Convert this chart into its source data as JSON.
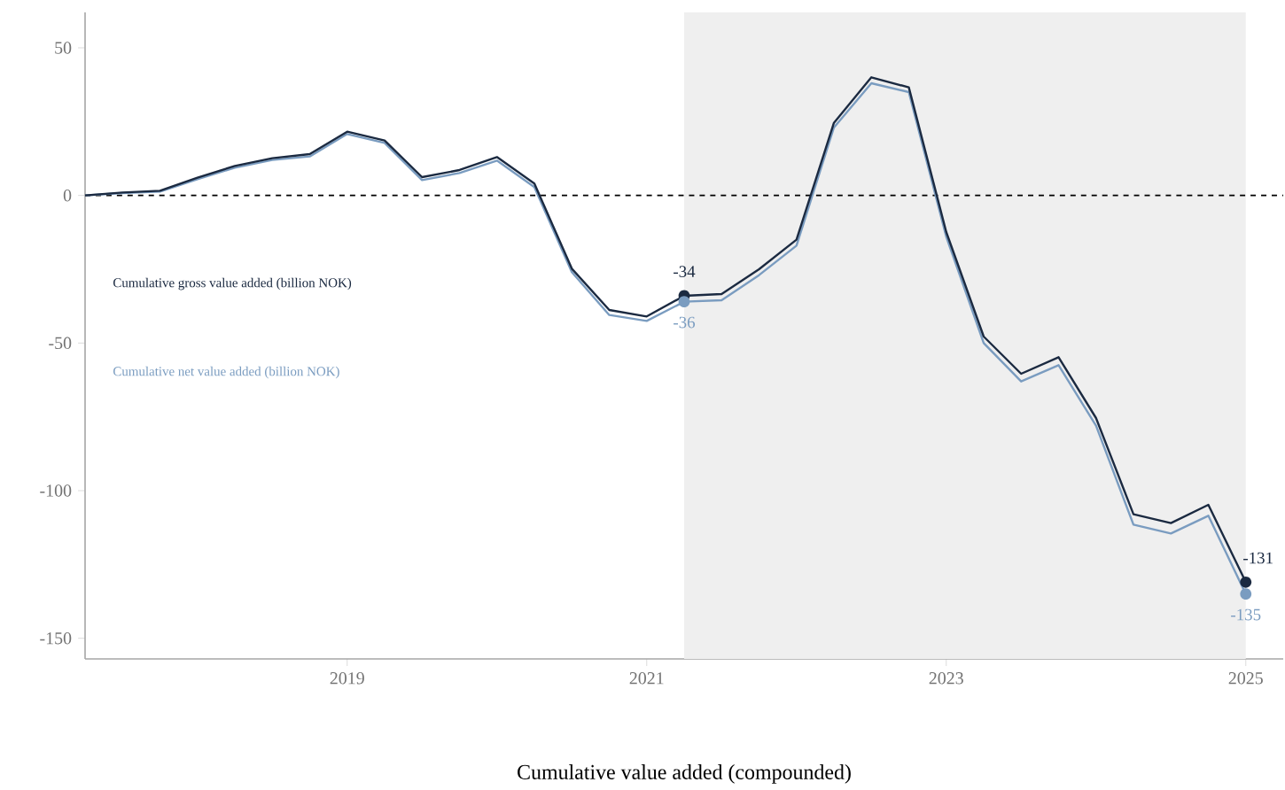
{
  "chart_data": {
    "type": "line",
    "xlabel": "Cumulative value added (compounded)",
    "x": [
      "2017-04",
      "2017-07",
      "2017-10",
      "2018-01",
      "2018-04",
      "2018-07",
      "2018-10",
      "2019-01",
      "2019-04",
      "2019-07",
      "2019-10",
      "2020-01",
      "2020-04",
      "2020-07",
      "2020-10",
      "2021-01",
      "2021-04",
      "2021-07",
      "2021-10",
      "2022-01",
      "2022-04",
      "2022-07",
      "2022-10",
      "2023-01",
      "2023-04",
      "2023-07",
      "2023-10",
      "2024-01",
      "2024-04",
      "2024-07",
      "2024-10",
      "2025-01"
    ],
    "series": [
      {
        "name": "Cumulative gross value added (billion NOK)",
        "color": "#1b2a41",
        "values": [
          0,
          1,
          1.6,
          6,
          10,
          12.6,
          14,
          21.6,
          18.6,
          6.2,
          8.6,
          13,
          4,
          -24.8,
          -38.8,
          -41,
          -34,
          -33.4,
          -25,
          -15,
          24.6,
          40,
          36.6,
          -12.4,
          -47.8,
          -60.4,
          -54.8,
          -75.4,
          -108,
          -111,
          -104.8,
          -131
        ]
      },
      {
        "name": "Cumulative net value added (billion NOK)",
        "color": "#7a9cc0",
        "values": [
          0,
          0.8,
          1.3,
          5.5,
          9.4,
          12,
          13.2,
          20.8,
          17.8,
          5.2,
          7.6,
          11.8,
          2.8,
          -26,
          -40.5,
          -42.5,
          -36,
          -35.5,
          -27,
          -17,
          23,
          38,
          35,
          -14,
          -50,
          -63,
          -57.5,
          -78,
          -111.5,
          -114.5,
          -108.5,
          -135
        ]
      }
    ],
    "annotations": [
      {
        "text": "-34",
        "x": "2021-04",
        "y": -34
      },
      {
        "text": "-36",
        "x": "2021-04",
        "y": -36
      },
      {
        "text": "-131",
        "x": "2025-01",
        "y": -131
      },
      {
        "text": "-135",
        "x": "2025-01",
        "y": -135
      }
    ],
    "xlim": [
      "2017-04",
      "2025-04"
    ],
    "ylim": [
      -157,
      62
    ],
    "xticks": [
      "2019",
      "2021",
      "2023",
      "2025"
    ],
    "yticks": [
      {
        "value": -150,
        "label": "-150"
      },
      {
        "value": -100,
        "label": "-100"
      },
      {
        "value": -50,
        "label": "-50"
      },
      {
        "value": 0,
        "label": "0"
      },
      {
        "value": 50,
        "label": "50"
      }
    ],
    "bands": [
      {
        "axis": "x",
        "from": "2021-04",
        "to": "2025-01",
        "color": "#efefef"
      }
    ],
    "ref_lines": [
      {
        "axis": "y",
        "value": 0,
        "line_style": "dashed",
        "color": "#000000"
      }
    ],
    "legend": "left",
    "grid": false,
    "line_style": "solid"
  }
}
